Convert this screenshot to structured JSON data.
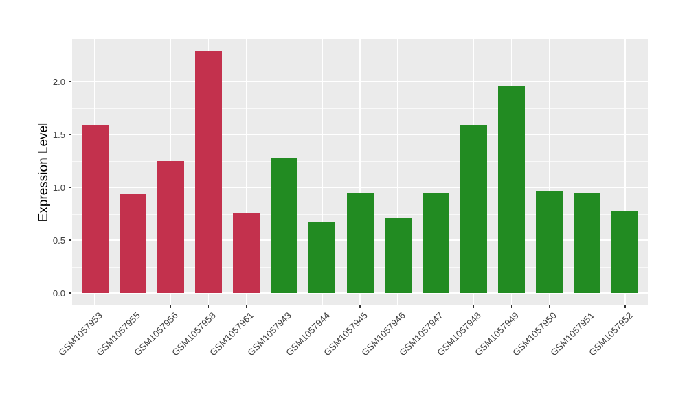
{
  "chart_data": {
    "type": "bar",
    "title": "",
    "xlabel": "",
    "ylabel": "Expression Level",
    "categories": [
      "GSM1057953",
      "GSM1057955",
      "GSM1057956",
      "GSM1057958",
      "GSM1057961",
      "GSM1057943",
      "GSM1057944",
      "GSM1057945",
      "GSM1057946",
      "GSM1057947",
      "GSM1057948",
      "GSM1057949",
      "GSM1057950",
      "GSM1057951",
      "GSM1057952"
    ],
    "values": [
      1.59,
      0.94,
      1.25,
      2.29,
      0.76,
      1.28,
      0.67,
      0.95,
      0.71,
      0.95,
      1.59,
      1.96,
      0.96,
      0.95,
      0.77
    ],
    "groups": [
      "group1",
      "group1",
      "group1",
      "group1",
      "group1",
      "group2",
      "group2",
      "group2",
      "group2",
      "group2",
      "group2",
      "group2",
      "group2",
      "group2",
      "group2"
    ],
    "group_colors": {
      "group1": "#C3314D",
      "group2": "#228B22"
    },
    "y_ticks": [
      0,
      0.5,
      1.0,
      1.5,
      2.0
    ],
    "y_tick_labels": [
      "0.0",
      "0.5",
      "1.0",
      "1.5",
      "2.0"
    ],
    "y_minor_ticks": [
      0.25,
      0.75,
      1.25,
      1.75,
      2.25
    ],
    "ylim": [
      -0.12,
      2.41
    ],
    "grid": true,
    "legend_position": "none",
    "bar_width_ratio": 0.7,
    "panel_background": "#EBEBEB",
    "gridline_color": "#FFFFFF",
    "axis_text_color": "#404040",
    "axis_title_color": "#000000"
  }
}
